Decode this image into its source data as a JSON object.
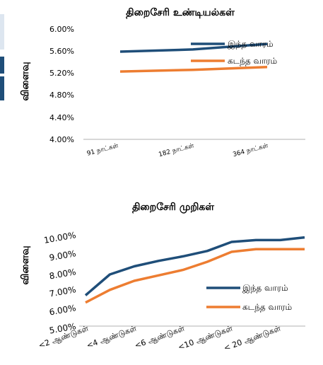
{
  "chart_data": [
    {
      "type": "line",
      "title": "திறைசேரி உண்டியல்கள்",
      "ylabel": "விளைவு",
      "xlabel": "",
      "categories": [
        "91 நாட்கள்",
        "182 நாட்கள்",
        "364 நாட்கள்"
      ],
      "ylim": [
        0.04,
        0.06
      ],
      "y_ticks": [
        "4.00%",
        "4.40%",
        "4.80%",
        "5.20%",
        "5.60%",
        "6.00%"
      ],
      "grid": false,
      "legend": "top-right",
      "series": [
        {
          "name": "இந்த வாரம்",
          "color": "#1f4e79",
          "values": [
            0.0559,
            0.0563,
            0.0573
          ]
        },
        {
          "name": "கடந்த வாரம்",
          "color": "#ed7d31",
          "values": [
            0.0523,
            0.0526,
            0.0531
          ]
        }
      ]
    },
    {
      "type": "line",
      "title": "திறைசேரி முறிகள்",
      "ylabel": "விளைவு",
      "xlabel": "",
      "categories": [
        "<2 ஆண்டுகள்",
        "",
        "<4 ஆண்டுகள்",
        "",
        "<6 ஆண்டுகள்",
        "",
        "<10 ஆண்டுகள்",
        "",
        "< 20 ஆண்டுகள்",
        ""
      ],
      "ylim": [
        0.05,
        0.1
      ],
      "y_ticks": [
        "5.00%",
        "6.00%",
        "7.00%",
        "8.00%",
        "9.00%",
        "10.00%"
      ],
      "grid": false,
      "legend": "bottom-right",
      "series": [
        {
          "name": "இந்த வாரம்",
          "color": "#1f4e79",
          "values": [
            0.067,
            0.0785,
            0.083,
            0.086,
            0.0885,
            0.0915,
            0.0965,
            0.0975,
            0.0975,
            0.099
          ]
        },
        {
          "name": "கடந்த வாரம்",
          "color": "#ed7d31",
          "values": [
            0.063,
            0.07,
            0.075,
            0.078,
            0.081,
            0.0855,
            0.091,
            0.0925,
            0.0925,
            0.0925
          ]
        }
      ]
    }
  ]
}
